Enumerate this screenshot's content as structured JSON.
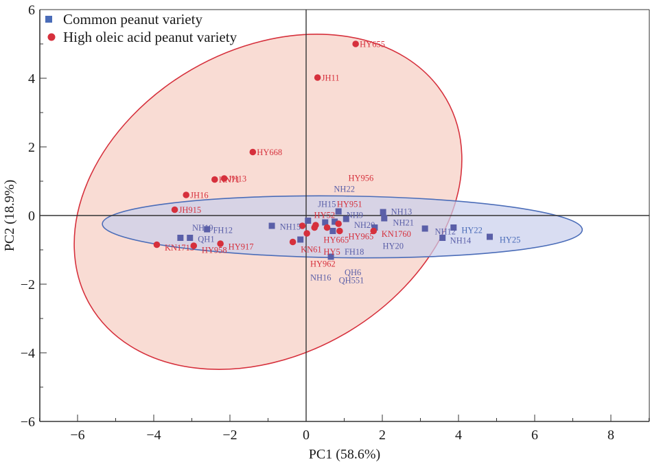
{
  "chart_data": {
    "type": "scatter",
    "title": "",
    "xlabel": "PC1 (58.6%)",
    "ylabel": "PC2 (18.9%)",
    "xlim": [
      -7,
      9.1
    ],
    "ylim": [
      -6,
      6
    ],
    "xticks": [
      -6,
      -4,
      -2,
      0,
      2,
      4,
      6,
      8
    ],
    "xtick_labels": [
      "−6",
      "−4",
      "−2",
      "0",
      "2",
      "4",
      "6",
      "8"
    ],
    "yticks": [
      -6,
      -4,
      -2,
      0,
      2,
      4,
      6
    ],
    "ytick_labels": [
      "−6",
      "−4",
      "−2",
      "0",
      "2",
      "4",
      "6"
    ],
    "grid": false,
    "zero_lines": true,
    "legend": {
      "position": "top-left",
      "entries": [
        {
          "label": "Common peanut variety",
          "marker": "square",
          "color": "#4a6cb8"
        },
        {
          "label": "High oleic acid peanut variety",
          "marker": "circle",
          "color": "#d6303c"
        }
      ]
    },
    "series": [
      {
        "name": "Common peanut variety",
        "marker": "square",
        "color": "#5a5fa8",
        "points": [
          {
            "label": "NH19",
            "x": -3.05,
            "y": -0.65
          },
          {
            "label": "QH1",
            "x": -3.3,
            "y": -0.65
          },
          {
            "label": "FH12",
            "x": -2.6,
            "y": -0.4
          },
          {
            "label": "NH15",
            "x": -0.9,
            "y": -0.3
          },
          {
            "label": "KN61",
            "x": -0.15,
            "y": -0.7
          },
          {
            "label": "JH15",
            "x": 0.05,
            "y": -0.15
          },
          {
            "label": "NH9",
            "x": 0.85,
            "y": 0.12
          },
          {
            "label": "NH22",
            "x": 0.5,
            "y": -0.2
          },
          {
            "label": "HY951",
            "x": 0.75,
            "y": -0.18
          },
          {
            "label": "NH20",
            "x": 1.05,
            "y": -0.1
          },
          {
            "label": "FH18",
            "x": 0.7,
            "y": -0.45
          },
          {
            "label": "QH6",
            "x": 0.65,
            "y": -1.2
          },
          {
            "label": "HY20",
            "x": 1.8,
            "y": -0.35
          },
          {
            "label": "NH13",
            "x": 2.02,
            "y": 0.1
          },
          {
            "label": "NH21",
            "x": 2.05,
            "y": -0.08
          },
          {
            "label": "NH12",
            "x": 3.12,
            "y": -0.38
          },
          {
            "label": "NH14",
            "x": 3.58,
            "y": -0.65
          },
          {
            "label": "HY22",
            "x": 3.87,
            "y": -0.35
          },
          {
            "label": "HY25",
            "x": 4.82,
            "y": -0.62
          }
        ]
      },
      {
        "name": "High oleic acid peanut variety",
        "marker": "circle",
        "color": "#d6303c",
        "points": [
          {
            "label": "HY655",
            "x": 1.3,
            "y": 5.0
          },
          {
            "label": "JH11",
            "x": 0.3,
            "y": 4.02
          },
          {
            "label": "HY668",
            "x": -1.4,
            "y": 1.85
          },
          {
            "label": "JH13",
            "x": -2.15,
            "y": 1.08
          },
          {
            "label": "KN71",
            "x": -2.4,
            "y": 1.05
          },
          {
            "label": "JH16",
            "x": -3.15,
            "y": 0.6
          },
          {
            "label": "JH915",
            "x": -3.45,
            "y": 0.17
          },
          {
            "label": "KN1715",
            "x": -3.92,
            "y": -0.85
          },
          {
            "label": "HY958",
            "x": -2.95,
            "y": -0.88
          },
          {
            "label": "HY917",
            "x": -2.25,
            "y": -0.82
          },
          {
            "label": "KN61",
            "x": -0.35,
            "y": -0.77
          },
          {
            "label": "HY52",
            "x": -0.1,
            "y": -0.3
          },
          {
            "label": "HY5",
            "x": 0.02,
            "y": -0.52
          },
          {
            "label": "HY962",
            "x": 0.22,
            "y": -0.35
          },
          {
            "label": "HY665",
            "x": 0.55,
            "y": -0.35
          },
          {
            "label": "HY956",
            "x": 0.25,
            "y": -0.28
          },
          {
            "label": "HY965",
            "x": 0.88,
            "y": -0.45
          },
          {
            "label": "HY951b",
            "x": 0.85,
            "y": -0.24
          },
          {
            "label": "KN1760",
            "x": 1.77,
            "y": -0.45
          }
        ]
      }
    ],
    "annotations": [
      {
        "text": "HY655",
        "x": 1.3,
        "y": 5.0,
        "color": "#d6303c"
      },
      {
        "text": "JH11",
        "x": 0.3,
        "y": 4.02,
        "color": "#d6303c"
      },
      {
        "text": "HY668",
        "x": -1.4,
        "y": 1.85,
        "color": "#d6303c"
      },
      {
        "text": "JH13",
        "x": -2.15,
        "y": 1.08,
        "color": "#d6303c"
      },
      {
        "text": "KN71",
        "x": -2.4,
        "y": 1.05,
        "color": "#d6303c"
      },
      {
        "text": "JH16",
        "x": -3.15,
        "y": 0.6,
        "color": "#d6303c"
      },
      {
        "text": "JH915",
        "x": -3.45,
        "y": 0.17,
        "color": "#d6303c"
      },
      {
        "text": "HY956",
        "x": 1.0,
        "y": 1.1,
        "color": "#d6303c"
      },
      {
        "text": "NH22",
        "x": 0.62,
        "y": 0.78,
        "color": "#5a5fa8"
      },
      {
        "text": "JH15",
        "x": 0.2,
        "y": 0.34,
        "color": "#5a5fa8"
      },
      {
        "text": "HY951",
        "x": 0.7,
        "y": 0.34,
        "color": "#d6303c"
      },
      {
        "text": "HY52",
        "x": 0.1,
        "y": 0.02,
        "color": "#d6303c"
      },
      {
        "text": "NH9",
        "x": 0.95,
        "y": 0.02,
        "color": "#5a5fa8"
      },
      {
        "text": "NH13",
        "x": 2.12,
        "y": 0.12,
        "color": "#5a5fa8"
      },
      {
        "text": "NH21",
        "x": 2.17,
        "y": -0.2,
        "color": "#5a5fa8"
      },
      {
        "text": "NH20",
        "x": 1.15,
        "y": -0.27,
        "color": "#5a5fa8"
      },
      {
        "text": "NH19",
        "x": -3.1,
        "y": -0.35,
        "color": "#5a5fa8"
      },
      {
        "text": "FH12",
        "x": -2.55,
        "y": -0.42,
        "color": "#5a5fa8"
      },
      {
        "text": "QH1",
        "x": -2.95,
        "y": -0.68,
        "color": "#5a5fa8"
      },
      {
        "text": "NH15",
        "x": -0.8,
        "y": -0.32,
        "color": "#5a5fa8"
      },
      {
        "text": "HY665",
        "x": 0.35,
        "y": -0.7,
        "color": "#d6303c"
      },
      {
        "text": "HY965",
        "x": 1.0,
        "y": -0.6,
        "color": "#d6303c"
      },
      {
        "text": "KN1760",
        "x": 1.87,
        "y": -0.53,
        "color": "#d6303c"
      },
      {
        "text": "HY20",
        "x": 1.9,
        "y": -0.88,
        "color": "#5a5fa8"
      },
      {
        "text": "KN1715",
        "x": -3.82,
        "y": -0.93,
        "color": "#d6303c"
      },
      {
        "text": "HY958",
        "x": -2.85,
        "y": -1.0,
        "color": "#d6303c"
      },
      {
        "text": "HY917",
        "x": -2.15,
        "y": -0.9,
        "color": "#d6303c"
      },
      {
        "text": "KN61",
        "x": -0.25,
        "y": -0.98,
        "color": "#d6303c"
      },
      {
        "text": "HY5",
        "x": 0.35,
        "y": -1.05,
        "color": "#d6303c"
      },
      {
        "text": "FH18",
        "x": 0.9,
        "y": -1.05,
        "color": "#5a5fa8"
      },
      {
        "text": "HY962",
        "x": 0.0,
        "y": -1.4,
        "color": "#d6303c"
      },
      {
        "text": "QH6",
        "x": 0.9,
        "y": -1.65,
        "color": "#5a5fa8"
      },
      {
        "text": "NH16",
        "x": 0.0,
        "y": -1.8,
        "color": "#5a5fa8"
      },
      {
        "text": "QH551",
        "x": 0.75,
        "y": -1.88,
        "color": "#5a5fa8"
      },
      {
        "text": "NH12",
        "x": 3.27,
        "y": -0.46,
        "color": "#5a5fa8"
      },
      {
        "text": "HY22",
        "x": 3.97,
        "y": -0.42,
        "color": "#4a6cb8"
      },
      {
        "text": "NH14",
        "x": 3.67,
        "y": -0.72,
        "color": "#5a5fa8"
      },
      {
        "text": "HY25",
        "x": 4.97,
        "y": -0.7,
        "color": "#4a6cb8"
      }
    ],
    "confidence_ellipses": [
      {
        "group": "High oleic acid peanut variety",
        "center": [
          -1.0,
          0.4
        ],
        "semi_axes": [
          5.4,
          4.45
        ],
        "angle_deg": 30,
        "fill": "#f8d6cc",
        "stroke": "#d6303c"
      },
      {
        "group": "Common peanut variety",
        "center": [
          0.95,
          -0.33
        ],
        "semi_axes": [
          6.3,
          0.9
        ],
        "angle_deg": -0.7,
        "fill": "#c9cfec",
        "stroke": "#4a6cb8"
      }
    ]
  }
}
